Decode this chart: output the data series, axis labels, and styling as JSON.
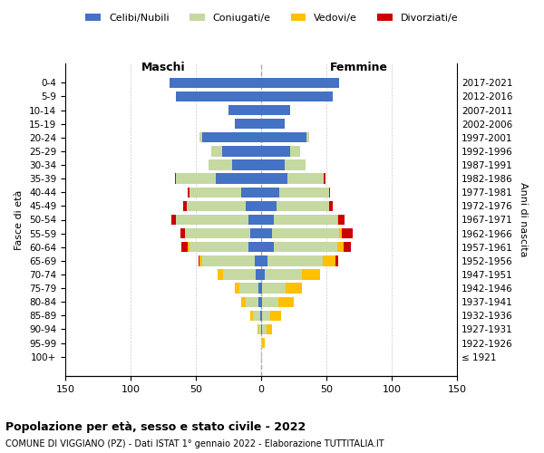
{
  "age_groups": [
    "100+",
    "95-99",
    "90-94",
    "85-89",
    "80-84",
    "75-79",
    "70-74",
    "65-69",
    "60-64",
    "55-59",
    "50-54",
    "45-49",
    "40-44",
    "35-39",
    "30-34",
    "25-29",
    "20-24",
    "15-19",
    "10-14",
    "5-9",
    "0-4"
  ],
  "birth_years": [
    "≤ 1921",
    "1922-1926",
    "1927-1931",
    "1932-1936",
    "1937-1941",
    "1942-1946",
    "1947-1951",
    "1952-1956",
    "1957-1961",
    "1962-1966",
    "1967-1971",
    "1972-1976",
    "1977-1981",
    "1982-1986",
    "1987-1991",
    "1992-1996",
    "1997-2001",
    "2002-2006",
    "2007-2011",
    "2012-2016",
    "2017-2021"
  ],
  "male_celibe": [
    0,
    0,
    0,
    1,
    2,
    2,
    4,
    5,
    10,
    8,
    10,
    12,
    15,
    35,
    22,
    30,
    45,
    20,
    25,
    65,
    70
  ],
  "male_coniugato": [
    0,
    0,
    2,
    5,
    10,
    15,
    25,
    40,
    45,
    50,
    55,
    45,
    40,
    30,
    18,
    8,
    2,
    0,
    0,
    0,
    0
  ],
  "male_vedovo": [
    0,
    0,
    1,
    2,
    3,
    3,
    4,
    2,
    1,
    0,
    0,
    0,
    0,
    0,
    0,
    0,
    0,
    0,
    0,
    0,
    0
  ],
  "male_divorziato": [
    0,
    0,
    0,
    0,
    0,
    0,
    0,
    1,
    5,
    4,
    4,
    3,
    1,
    1,
    0,
    0,
    0,
    0,
    0,
    0,
    0
  ],
  "female_celibe": [
    0,
    0,
    1,
    1,
    1,
    1,
    3,
    5,
    10,
    8,
    10,
    12,
    14,
    20,
    18,
    22,
    35,
    18,
    22,
    55,
    60
  ],
  "female_coniugato": [
    0,
    1,
    3,
    6,
    12,
    18,
    28,
    42,
    48,
    52,
    48,
    40,
    38,
    28,
    16,
    8,
    2,
    0,
    0,
    0,
    0
  ],
  "female_vedovo": [
    1,
    2,
    4,
    8,
    12,
    12,
    14,
    10,
    5,
    2,
    1,
    0,
    0,
    0,
    0,
    0,
    0,
    0,
    0,
    0,
    0
  ],
  "female_divorziato": [
    0,
    0,
    0,
    0,
    0,
    0,
    0,
    2,
    6,
    8,
    5,
    3,
    1,
    1,
    0,
    0,
    0,
    0,
    0,
    0,
    0
  ],
  "color_celibe": "#4472c4",
  "color_coniugato": "#c5d9a0",
  "color_vedovo": "#ffc000",
  "color_divorziato": "#cc0000",
  "title": "Popolazione per età, sesso e stato civile - 2022",
  "subtitle": "COMUNE DI VIGGIANO (PZ) - Dati ISTAT 1° gennaio 2022 - Elaborazione TUTTITALIA.IT",
  "xlabel_left": "Maschi",
  "xlabel_right": "Femmine",
  "ylabel": "Fasce di età",
  "ylabel_right": "Anni di nascita",
  "xlim": 150,
  "background_color": "#ffffff",
  "grid_color": "#cccccc",
  "legend_labels": [
    "Celibi/Nubili",
    "Coniugati/e",
    "Vedovi/e",
    "Divorziati/e"
  ]
}
